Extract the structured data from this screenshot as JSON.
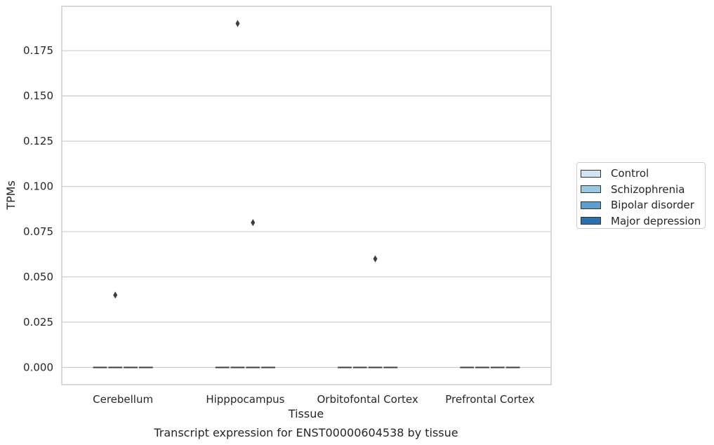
{
  "chart_data": {
    "type": "box",
    "title": "",
    "caption": "Transcript expression for ENST00000604538 by tissue",
    "xlabel": "Tissue",
    "ylabel": "TPMs",
    "categories": [
      "Cerebellum",
      "Hipppocampus",
      "Orbitofontal Cortex",
      "Prefrontal Cortex"
    ],
    "ylim": [
      -0.0095,
      0.1995
    ],
    "yticks": [
      0.0,
      0.025,
      0.05,
      0.075,
      0.1,
      0.125,
      0.15,
      0.175
    ],
    "ytick_labels": [
      "0.000",
      "0.025",
      "0.050",
      "0.075",
      "0.100",
      "0.125",
      "0.150",
      "0.175"
    ],
    "grid": true,
    "legend_position": "right",
    "series": [
      {
        "name": "Control",
        "color": "#d2e3f3",
        "median": [
          0,
          0,
          0,
          0
        ],
        "outliers": [
          [],
          [],
          [],
          []
        ]
      },
      {
        "name": "Schizophrenia",
        "color": "#9ac8e0",
        "median": [
          0,
          0,
          0,
          0
        ],
        "outliers": [
          [
            0.04
          ],
          [
            0.19
          ],
          [],
          []
        ]
      },
      {
        "name": "Bipolar disorder",
        "color": "#5a9fcd",
        "median": [
          0,
          0,
          0,
          0
        ],
        "outliers": [
          [],
          [
            0.08
          ],
          [
            0.06
          ],
          []
        ]
      },
      {
        "name": "Major depression",
        "color": "#2a6fb0",
        "median": [
          0,
          0,
          0,
          0
        ],
        "outliers": [
          [],
          [],
          [],
          []
        ]
      }
    ]
  }
}
